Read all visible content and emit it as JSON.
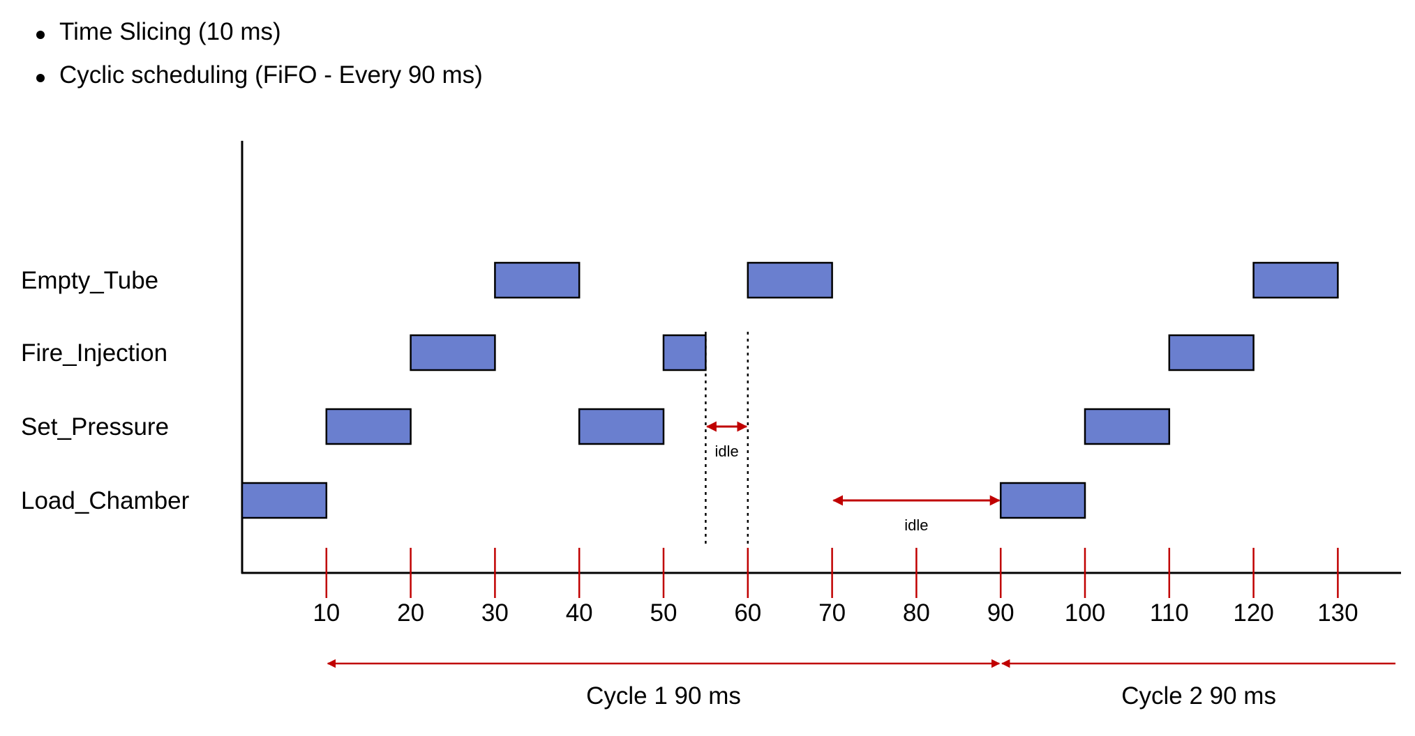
{
  "bullets": [
    "Time Slicing (10 ms)",
    "Cyclic scheduling (FiFO - Every 90 ms)"
  ],
  "tasks": [
    "Load_Chamber",
    "Set_Pressure",
    "Fire_Injection",
    "Empty_Tube"
  ],
  "ticks": [
    10,
    20,
    30,
    40,
    50,
    60,
    70,
    80,
    90,
    100,
    110,
    120,
    130
  ],
  "blocks": [
    {
      "task": "Load_Chamber",
      "start": 0,
      "end": 10
    },
    {
      "task": "Set_Pressure",
      "start": 10,
      "end": 20
    },
    {
      "task": "Fire_Injection",
      "start": 20,
      "end": 30
    },
    {
      "task": "Empty_Tube",
      "start": 30,
      "end": 40
    },
    {
      "task": "Set_Pressure",
      "start": 40,
      "end": 50
    },
    {
      "task": "Fire_Injection",
      "start": 50,
      "end": 55
    },
    {
      "task": "Empty_Tube",
      "start": 60,
      "end": 70
    },
    {
      "task": "Load_Chamber",
      "start": 90,
      "end": 100
    },
    {
      "task": "Set_Pressure",
      "start": 100,
      "end": 110
    },
    {
      "task": "Fire_Injection",
      "start": 110,
      "end": 120
    },
    {
      "task": "Empty_Tube",
      "start": 120,
      "end": 130
    }
  ],
  "idle_periods": [
    {
      "start": 55,
      "end": 60,
      "label": "idle",
      "row": "Set_Pressure"
    },
    {
      "start": 70,
      "end": 90,
      "label": "idle",
      "row": "Load_Chamber"
    }
  ],
  "cycles": [
    {
      "label": "Cycle 1 90 ms",
      "start": 10,
      "end": 90
    },
    {
      "label": "Cycle 2 90 ms",
      "start": 90,
      "end": 137
    }
  ],
  "colors": {
    "block_fill": "#6a7fcf",
    "block_stroke": "#000000",
    "accent_red": "#c00000",
    "axis": "#000000"
  }
}
